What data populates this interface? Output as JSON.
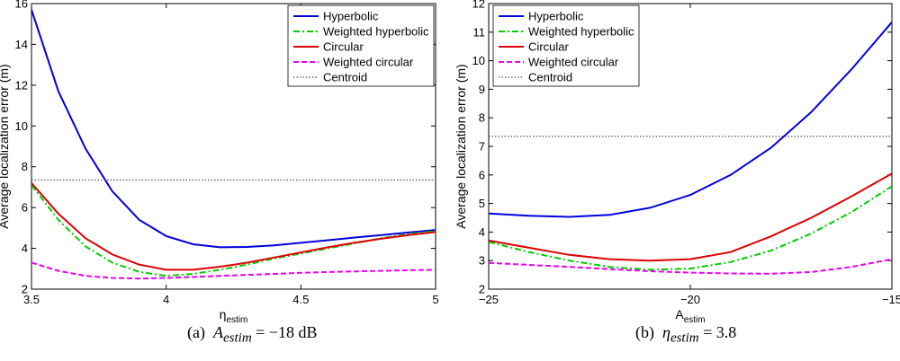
{
  "chart_data": [
    {
      "type": "line",
      "xlabel_main": "η",
      "xlabel_sub": "estim",
      "ylabel": "Average localization error (m)",
      "xlim": [
        3.5,
        5
      ],
      "ylim": [
        2,
        16
      ],
      "xticks": [
        "3.5",
        "4",
        "4.5",
        "5"
      ],
      "yticks": [
        "2",
        "4",
        "6",
        "8",
        "10",
        "12",
        "14",
        "16"
      ],
      "legend_position": "top-right",
      "caption": {
        "label": "(a)",
        "var_main": "A",
        "var_sub": "estim",
        "value": " = −18 dB"
      },
      "x": [
        3.5,
        3.6,
        3.7,
        3.8,
        3.9,
        4.0,
        4.1,
        4.2,
        4.3,
        4.4,
        4.5,
        4.6,
        4.7,
        4.8,
        4.9,
        5.0
      ],
      "series": [
        {
          "name": "Hyperbolic",
          "color": "#0000dd",
          "style": "solid",
          "values": [
            15.7,
            11.7,
            8.9,
            6.8,
            5.4,
            4.6,
            4.2,
            4.05,
            4.07,
            4.15,
            4.27,
            4.4,
            4.53,
            4.65,
            4.78,
            4.9
          ]
        },
        {
          "name": "Weighted hyperbolic",
          "color": "#00cc00",
          "style": "dashdot",
          "values": [
            7.1,
            5.4,
            4.1,
            3.3,
            2.85,
            2.65,
            2.75,
            2.95,
            3.2,
            3.5,
            3.75,
            4.0,
            4.25,
            4.5,
            4.7,
            4.85
          ]
        },
        {
          "name": "Circular",
          "color": "#dd0000",
          "style": "solid",
          "values": [
            7.2,
            5.7,
            4.5,
            3.7,
            3.2,
            2.95,
            2.95,
            3.1,
            3.3,
            3.55,
            3.8,
            4.05,
            4.28,
            4.48,
            4.65,
            4.8
          ]
        },
        {
          "name": "Weighted circular",
          "color": "#ee00ee",
          "style": "dashed",
          "values": [
            3.3,
            2.9,
            2.65,
            2.55,
            2.52,
            2.55,
            2.6,
            2.65,
            2.7,
            2.75,
            2.8,
            2.84,
            2.87,
            2.9,
            2.93,
            2.95
          ]
        },
        {
          "name": "Centroid",
          "color": "#555555",
          "style": "dotted",
          "values": [
            7.35,
            7.35,
            7.35,
            7.35,
            7.35,
            7.35,
            7.35,
            7.35,
            7.35,
            7.35,
            7.35,
            7.35,
            7.35,
            7.35,
            7.35,
            7.35
          ]
        }
      ]
    },
    {
      "type": "line",
      "xlabel_main": "A",
      "xlabel_sub": "estim",
      "ylabel": "Average localization error (m)",
      "xlim": [
        -25,
        -15
      ],
      "ylim": [
        2,
        12
      ],
      "xticks": [
        "−25",
        "−20",
        "−15"
      ],
      "yticks": [
        "2",
        "3",
        "4",
        "5",
        "6",
        "7",
        "8",
        "9",
        "10",
        "11",
        "12"
      ],
      "legend_position": "top-left",
      "caption": {
        "label": "(b)",
        "var_main": "η",
        "var_sub": "estim",
        "value": " = 3.8"
      },
      "x": [
        -25,
        -24,
        -23,
        -22,
        -21,
        -20,
        -19,
        -18,
        -17,
        -16,
        -15
      ],
      "series": [
        {
          "name": "Hyperbolic",
          "color": "#0000dd",
          "style": "solid",
          "values": [
            4.65,
            4.57,
            4.53,
            4.6,
            4.85,
            5.3,
            6.0,
            6.95,
            8.2,
            9.7,
            11.35
          ]
        },
        {
          "name": "Weighted hyperbolic",
          "color": "#00cc00",
          "style": "dashdot",
          "values": [
            3.65,
            3.3,
            3.0,
            2.78,
            2.68,
            2.72,
            2.95,
            3.35,
            3.95,
            4.7,
            5.6
          ]
        },
        {
          "name": "Circular",
          "color": "#dd0000",
          "style": "solid",
          "values": [
            3.7,
            3.45,
            3.2,
            3.05,
            3.0,
            3.05,
            3.3,
            3.85,
            4.5,
            5.25,
            6.05
          ]
        },
        {
          "name": "Weighted circular",
          "color": "#ee00ee",
          "style": "dashed",
          "values": [
            2.92,
            2.85,
            2.78,
            2.7,
            2.63,
            2.58,
            2.55,
            2.54,
            2.6,
            2.78,
            3.05
          ]
        },
        {
          "name": "Centroid",
          "color": "#555555",
          "style": "dotted",
          "values": [
            7.35,
            7.35,
            7.35,
            7.35,
            7.35,
            7.35,
            7.35,
            7.35,
            7.35,
            7.35,
            7.35
          ]
        }
      ]
    }
  ]
}
